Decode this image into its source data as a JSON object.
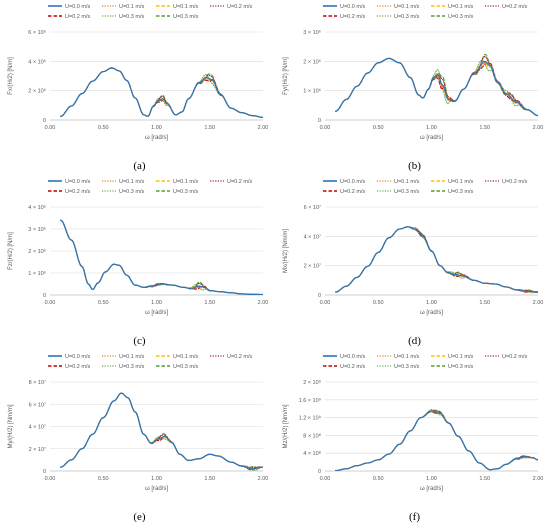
{
  "legend": {
    "entries": [
      {
        "label": "U=0.0 m/s",
        "color": "#2e75b6",
        "dash": "solid"
      },
      {
        "label": "U=0.1 m/s",
        "color": "#ed7d31",
        "dash": "dot"
      },
      {
        "label": "U=0.1 m/s",
        "color": "#ffc000",
        "dash": "dash"
      },
      {
        "label": "U=0.2 m/s",
        "color": "#9e2a2b",
        "dash": "dot"
      },
      {
        "label": "U=0.2 m/s",
        "color": "#c00000",
        "dash": "dash"
      },
      {
        "label": "U=0.3 m/s",
        "color": "#70ad47",
        "dash": "dot"
      },
      {
        "label": "U=0.3 m/s",
        "color": "#5b9b3b",
        "dash": "dash"
      }
    ]
  },
  "chart_data": [
    {
      "type": "line",
      "panel_label": "(a)",
      "ylabel": "Fx/(H/2) [N/m]",
      "xlabel": "ω [rad/s]",
      "xlim": [
        0,
        2
      ],
      "xticks": [
        "0.00",
        "0.50",
        "1.00",
        "1.50",
        "2.00"
      ],
      "ylim": [
        0,
        6000000
      ],
      "yticks": [
        0,
        2000000,
        4000000,
        6000000
      ],
      "ytick_labels": [
        "0",
        "2 × 10⁶",
        "4 × 10⁶",
        "6 × 10⁶"
      ],
      "base": [
        [
          0.1,
          0.25
        ],
        [
          0.2,
          0.95
        ],
        [
          0.3,
          1.8
        ],
        [
          0.4,
          2.65
        ],
        [
          0.5,
          3.3
        ],
        [
          0.58,
          3.55
        ],
        [
          0.65,
          3.35
        ],
        [
          0.72,
          2.7
        ],
        [
          0.8,
          1.5
        ],
        [
          0.88,
          0.35
        ],
        [
          0.92,
          0.25
        ],
        [
          0.97,
          0.95
        ],
        [
          1.02,
          1.35
        ],
        [
          1.06,
          1.45
        ],
        [
          1.1,
          1.1
        ],
        [
          1.18,
          0.35
        ],
        [
          1.24,
          0.55
        ],
        [
          1.3,
          1.45
        ],
        [
          1.4,
          2.55
        ],
        [
          1.47,
          2.9
        ],
        [
          1.52,
          2.75
        ],
        [
          1.6,
          1.75
        ],
        [
          1.7,
          0.8
        ],
        [
          1.8,
          0.5
        ],
        [
          1.9,
          0.3
        ],
        [
          2.0,
          0.18
        ]
      ],
      "base_scale": 1000000,
      "perturb": [
        {
          "c": 1.05,
          "w": 0.06,
          "amp": 0.25
        },
        {
          "c": 1.5,
          "w": 0.08,
          "amp": 0.35
        }
      ]
    },
    {
      "type": "line",
      "panel_label": "(b)",
      "ylabel": "Fy/(H/2) [N/m]",
      "xlabel": "ω [rad/s]",
      "xlim": [
        0,
        2
      ],
      "xticks": [
        "0.00",
        "0.50",
        "1.00",
        "1.50",
        "2.00"
      ],
      "ylim": [
        0,
        3000000
      ],
      "yticks": [
        0,
        1000000,
        2000000,
        3000000
      ],
      "ytick_labels": [
        "0",
        "1 × 10⁶",
        "2 × 10⁶",
        "3 × 10⁶"
      ],
      "base": [
        [
          0.1,
          0.3
        ],
        [
          0.2,
          0.7
        ],
        [
          0.3,
          1.15
        ],
        [
          0.4,
          1.6
        ],
        [
          0.5,
          1.95
        ],
        [
          0.6,
          2.1
        ],
        [
          0.7,
          1.95
        ],
        [
          0.8,
          1.45
        ],
        [
          0.88,
          0.85
        ],
        [
          0.92,
          0.75
        ],
        [
          0.97,
          1.05
        ],
        [
          1.02,
          1.45
        ],
        [
          1.06,
          1.55
        ],
        [
          1.1,
          1.2
        ],
        [
          1.16,
          0.7
        ],
        [
          1.22,
          0.65
        ],
        [
          1.3,
          1.05
        ],
        [
          1.4,
          1.6
        ],
        [
          1.5,
          2.0
        ],
        [
          1.55,
          1.85
        ],
        [
          1.62,
          1.3
        ],
        [
          1.7,
          0.9
        ],
        [
          1.8,
          0.6
        ],
        [
          1.9,
          0.35
        ],
        [
          2.0,
          0.15
        ]
      ],
      "base_scale": 1000000,
      "perturb": [
        {
          "c": 1.1,
          "w": 0.07,
          "amp": 0.3
        },
        {
          "c": 1.5,
          "w": 0.08,
          "amp": 0.25
        },
        {
          "c": 1.75,
          "w": 0.1,
          "amp": 0.15
        }
      ]
    },
    {
      "type": "line",
      "panel_label": "(c)",
      "ylabel": "Fz/(H/2) [N/m]",
      "xlabel": "ω [rad/s]",
      "xlim": [
        0,
        2
      ],
      "xticks": [
        "0.00",
        "0.50",
        "1.00",
        "1.50",
        "2.00"
      ],
      "ylim": [
        0,
        4000000
      ],
      "yticks": [
        0,
        1000000,
        2000000,
        3000000,
        4000000
      ],
      "ytick_labels": [
        "0",
        "1 × 10⁶",
        "2 × 10⁶",
        "3 × 10⁶",
        "4 × 10⁶"
      ],
      "base": [
        [
          0.1,
          3.4
        ],
        [
          0.2,
          2.5
        ],
        [
          0.3,
          1.3
        ],
        [
          0.36,
          0.5
        ],
        [
          0.4,
          0.25
        ],
        [
          0.45,
          0.55
        ],
        [
          0.52,
          1.05
        ],
        [
          0.6,
          1.4
        ],
        [
          0.65,
          1.35
        ],
        [
          0.72,
          0.9
        ],
        [
          0.8,
          0.45
        ],
        [
          0.88,
          0.35
        ],
        [
          0.95,
          0.4
        ],
        [
          1.05,
          0.5
        ],
        [
          1.15,
          0.45
        ],
        [
          1.25,
          0.35
        ],
        [
          1.32,
          0.3
        ],
        [
          1.4,
          0.4
        ],
        [
          1.45,
          0.35
        ],
        [
          1.5,
          0.2
        ],
        [
          1.6,
          0.15
        ],
        [
          1.7,
          0.1
        ],
        [
          1.8,
          0.05
        ],
        [
          1.9,
          0.03
        ],
        [
          2.0,
          0.02
        ]
      ],
      "base_scale": 1000000,
      "perturb": [
        {
          "c": 1.4,
          "w": 0.06,
          "amp": 0.2
        },
        {
          "c": 1.0,
          "w": 0.1,
          "amp": 0.05
        }
      ]
    },
    {
      "type": "line",
      "panel_label": "(d)",
      "ylabel": "Mx/(H/2) [Nm/m]",
      "xlabel": "ω [rad/s]",
      "xlim": [
        0,
        2
      ],
      "xticks": [
        "0.00",
        "0.50",
        "1.00",
        "1.50",
        "2.00"
      ],
      "ylim": [
        0,
        60000000
      ],
      "yticks": [
        0,
        20000000,
        40000000,
        60000000
      ],
      "ytick_labels": [
        "0",
        "2 × 10⁷",
        "4 × 10⁷",
        "6 × 10⁷"
      ],
      "base": [
        [
          0.1,
          0.2
        ],
        [
          0.2,
          0.6
        ],
        [
          0.3,
          1.2
        ],
        [
          0.4,
          1.95
        ],
        [
          0.5,
          2.9
        ],
        [
          0.6,
          3.9
        ],
        [
          0.7,
          4.5
        ],
        [
          0.78,
          4.65
        ],
        [
          0.85,
          4.5
        ],
        [
          0.92,
          4.0
        ],
        [
          1.0,
          3.0
        ],
        [
          1.08,
          2.0
        ],
        [
          1.15,
          1.55
        ],
        [
          1.22,
          1.4
        ],
        [
          1.3,
          1.3
        ],
        [
          1.4,
          1.0
        ],
        [
          1.5,
          0.8
        ],
        [
          1.6,
          0.75
        ],
        [
          1.7,
          0.55
        ],
        [
          1.8,
          0.35
        ],
        [
          1.9,
          0.25
        ],
        [
          2.0,
          0.2
        ]
      ],
      "base_scale": 10000000,
      "perturb": [
        {
          "c": 0.9,
          "w": 0.08,
          "amp": 0.15
        },
        {
          "c": 1.25,
          "w": 0.08,
          "amp": 0.2
        },
        {
          "c": 1.9,
          "w": 0.08,
          "amp": 0.1
        }
      ]
    },
    {
      "type": "line",
      "panel_label": "(e)",
      "ylabel": "My/(H/2) [Nm/m]",
      "xlabel": "ω [rad/s]",
      "xlim": [
        0,
        2
      ],
      "xticks": [
        "0.00",
        "0.50",
        "1.00",
        "1.50",
        "2.00"
      ],
      "ylim": [
        0,
        80000000
      ],
      "yticks": [
        0,
        20000000,
        40000000,
        60000000,
        80000000
      ],
      "ytick_labels": [
        "0",
        "2 × 10⁷",
        "4 × 10⁷",
        "6 × 10⁷",
        "8 × 10⁷"
      ],
      "base": [
        [
          0.1,
          0.35
        ],
        [
          0.2,
          1.0
        ],
        [
          0.3,
          2.0
        ],
        [
          0.4,
          3.3
        ],
        [
          0.5,
          4.8
        ],
        [
          0.6,
          6.3
        ],
        [
          0.67,
          7.0
        ],
        [
          0.73,
          6.6
        ],
        [
          0.8,
          5.3
        ],
        [
          0.88,
          3.3
        ],
        [
          0.95,
          2.5
        ],
        [
          1.02,
          2.9
        ],
        [
          1.08,
          3.1
        ],
        [
          1.14,
          2.6
        ],
        [
          1.22,
          1.5
        ],
        [
          1.3,
          0.95
        ],
        [
          1.4,
          1.1
        ],
        [
          1.5,
          1.5
        ],
        [
          1.58,
          1.35
        ],
        [
          1.7,
          0.8
        ],
        [
          1.8,
          0.45
        ],
        [
          1.9,
          0.2
        ],
        [
          2.0,
          0.35
        ]
      ],
      "base_scale": 10000000,
      "perturb": [
        {
          "c": 1.05,
          "w": 0.07,
          "amp": 0.3
        },
        {
          "c": 1.9,
          "w": 0.07,
          "amp": 0.2
        }
      ]
    },
    {
      "type": "line",
      "panel_label": "(f)",
      "ylabel": "Mz/(H/2) [Nm/m]",
      "xlabel": "ω [rad/s]",
      "xlim": [
        0,
        2
      ],
      "xticks": [
        "0.00",
        "0.50",
        "1.00",
        "1.50",
        "2.00"
      ],
      "ylim": [
        0,
        2000000000
      ],
      "yticks": [
        0,
        400000000,
        800000000,
        1200000000,
        1600000000,
        2000000000
      ],
      "ytick_labels": [
        "0",
        "4 × 10⁸",
        "8 × 10⁸",
        "1.2 × 10⁹",
        "1.6 × 10⁹",
        "2 × 10⁹"
      ],
      "base": [
        [
          0.1,
          0.01
        ],
        [
          0.2,
          0.05
        ],
        [
          0.3,
          0.12
        ],
        [
          0.4,
          0.18
        ],
        [
          0.5,
          0.25
        ],
        [
          0.6,
          0.38
        ],
        [
          0.7,
          0.6
        ],
        [
          0.8,
          0.9
        ],
        [
          0.9,
          1.2
        ],
        [
          1.0,
          1.35
        ],
        [
          1.08,
          1.3
        ],
        [
          1.16,
          1.08
        ],
        [
          1.25,
          0.78
        ],
        [
          1.35,
          0.45
        ],
        [
          1.45,
          0.18
        ],
        [
          1.55,
          0.03
        ],
        [
          1.62,
          0.05
        ],
        [
          1.7,
          0.15
        ],
        [
          1.8,
          0.28
        ],
        [
          1.88,
          0.32
        ],
        [
          1.95,
          0.3
        ],
        [
          2.0,
          0.25
        ]
      ],
      "base_scale": 1000000000,
      "perturb": [
        {
          "c": 1.05,
          "w": 0.08,
          "amp": 0.05
        },
        {
          "c": 1.85,
          "w": 0.08,
          "amp": 0.03
        }
      ]
    }
  ]
}
